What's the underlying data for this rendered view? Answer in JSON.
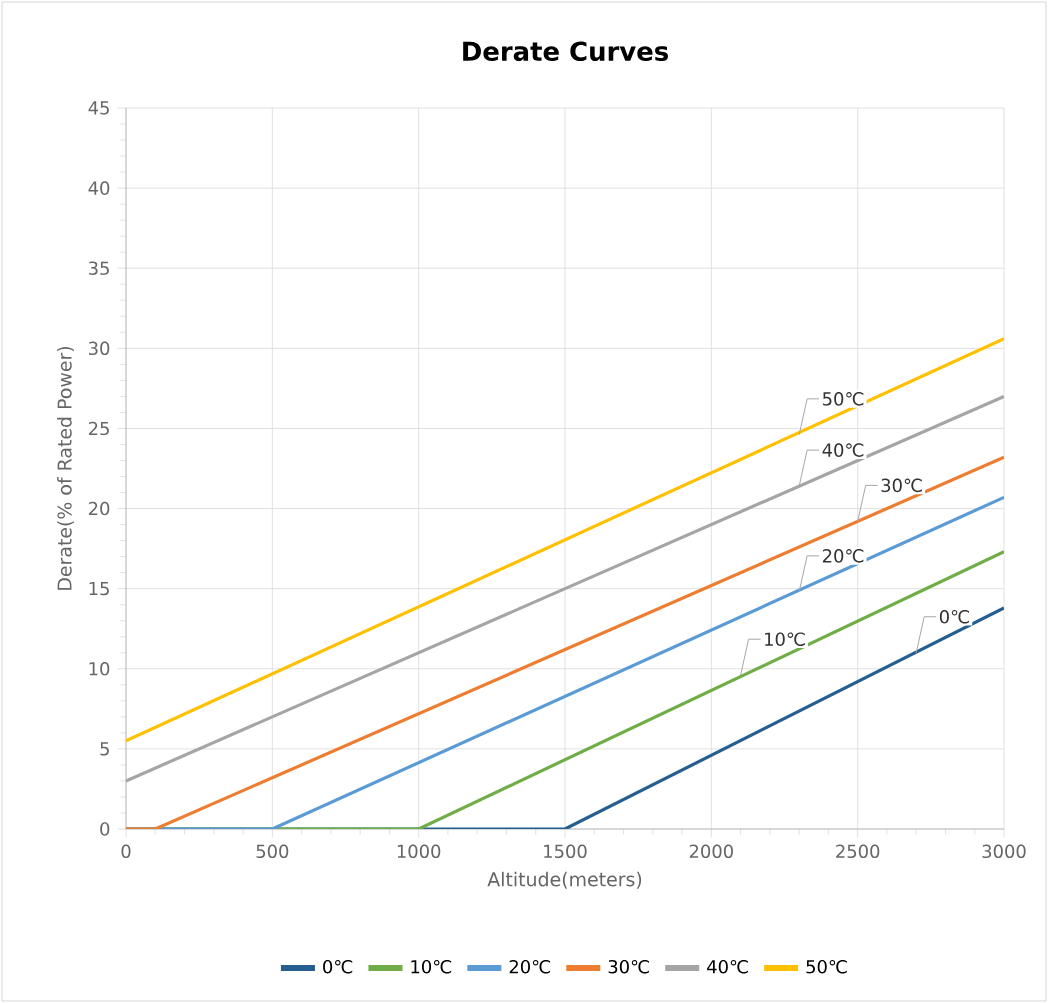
{
  "chart_data": {
    "type": "line",
    "title": "Derate Curves",
    "xlabel": "Altitude(meters)",
    "ylabel": "Derate(% of Rated Power)",
    "xlim": [
      0,
      3000
    ],
    "ylim": [
      0,
      45
    ],
    "xticks": [
      0,
      500,
      1000,
      1500,
      2000,
      2500,
      3000
    ],
    "yticks": [
      0,
      5,
      10,
      15,
      20,
      25,
      30,
      35,
      40,
      45
    ],
    "grid": true,
    "legend": "bottom",
    "marker": "none",
    "line_style": "solid",
    "series": [
      {
        "name": "0℃",
        "color": "#255e91",
        "x": [
          0,
          1500,
          3000
        ],
        "values": [
          0,
          0,
          13.8
        ]
      },
      {
        "name": "10℃",
        "color": "#70ad47",
        "x": [
          0,
          1000,
          3000
        ],
        "values": [
          0,
          0,
          17.3
        ]
      },
      {
        "name": "20℃",
        "color": "#5b9bd5",
        "x": [
          0,
          500,
          3000
        ],
        "values": [
          0,
          0,
          20.7
        ]
      },
      {
        "name": "30℃",
        "color": "#ed7d31",
        "x": [
          0,
          100,
          3000
        ],
        "values": [
          0,
          0,
          23.2
        ]
      },
      {
        "name": "40℃",
        "color": "#a5a5a5",
        "x": [
          0,
          3000
        ],
        "values": [
          3.0,
          27.0
        ]
      },
      {
        "name": "50℃",
        "color": "#ffc000",
        "x": [
          0,
          3000
        ],
        "values": [
          5.5,
          30.6
        ]
      }
    ],
    "annotations": [
      {
        "text": "50℃",
        "x": 2300,
        "y": 24.6
      },
      {
        "text": "40℃",
        "x": 2300,
        "y": 21.4
      },
      {
        "text": "30℃",
        "x": 2500,
        "y": 19.2
      },
      {
        "text": "20℃",
        "x": 2300,
        "y": 14.8
      },
      {
        "text": "10℃",
        "x": 2100,
        "y": 9.6
      },
      {
        "text": "0℃",
        "x": 2700,
        "y": 11.0
      }
    ]
  }
}
